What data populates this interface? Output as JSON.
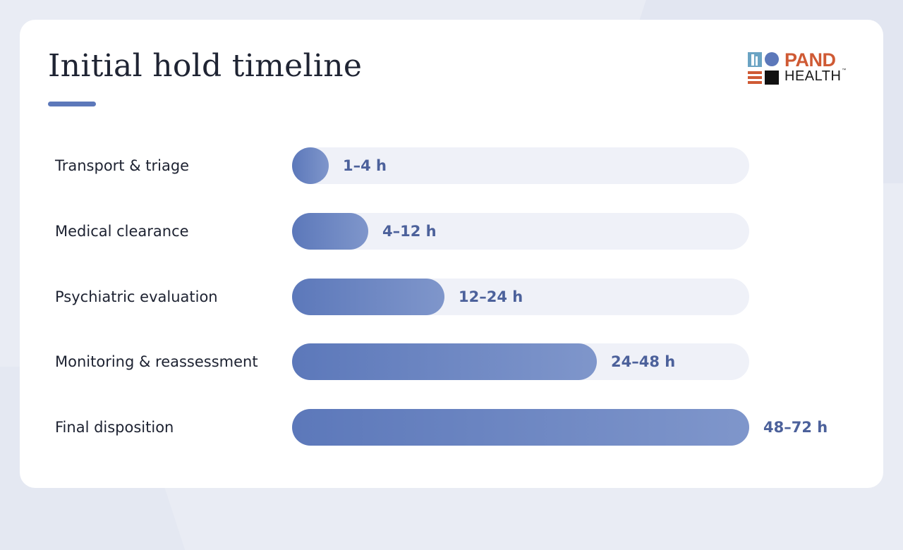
{
  "header": {
    "title": "Initial hold timeline"
  },
  "logo": {
    "word_top": "PAND",
    "word_bottom": "HEALTH",
    "trademark": "™",
    "icon": "pand-health-logo-icon"
  },
  "colors": {
    "bar_start": "#5c78ba",
    "bar_end": "#7f96cb",
    "track": "#eff1f8",
    "value_text": "#4c619b",
    "logo_orange": "#cf5a34"
  },
  "chart_data": {
    "type": "bar",
    "orientation": "horizontal",
    "title": "Initial hold timeline",
    "xlabel": "",
    "ylabel": "",
    "unit": "h",
    "xlim": [
      0,
      72
    ],
    "grid": false,
    "categories": [
      "Transport & triage",
      "Medical clearance",
      "Psychiatric evaluation",
      "Monitoring & reassessment",
      "Final disposition"
    ],
    "ranges": [
      [
        1,
        4
      ],
      [
        4,
        12
      ],
      [
        12,
        24
      ],
      [
        24,
        48
      ],
      [
        48,
        72
      ]
    ],
    "values": [
      4,
      12,
      24,
      48,
      72
    ],
    "labels": [
      "1–4 h",
      "4–12 h",
      "12–24 h",
      "24–48 h",
      "48–72 h"
    ]
  }
}
